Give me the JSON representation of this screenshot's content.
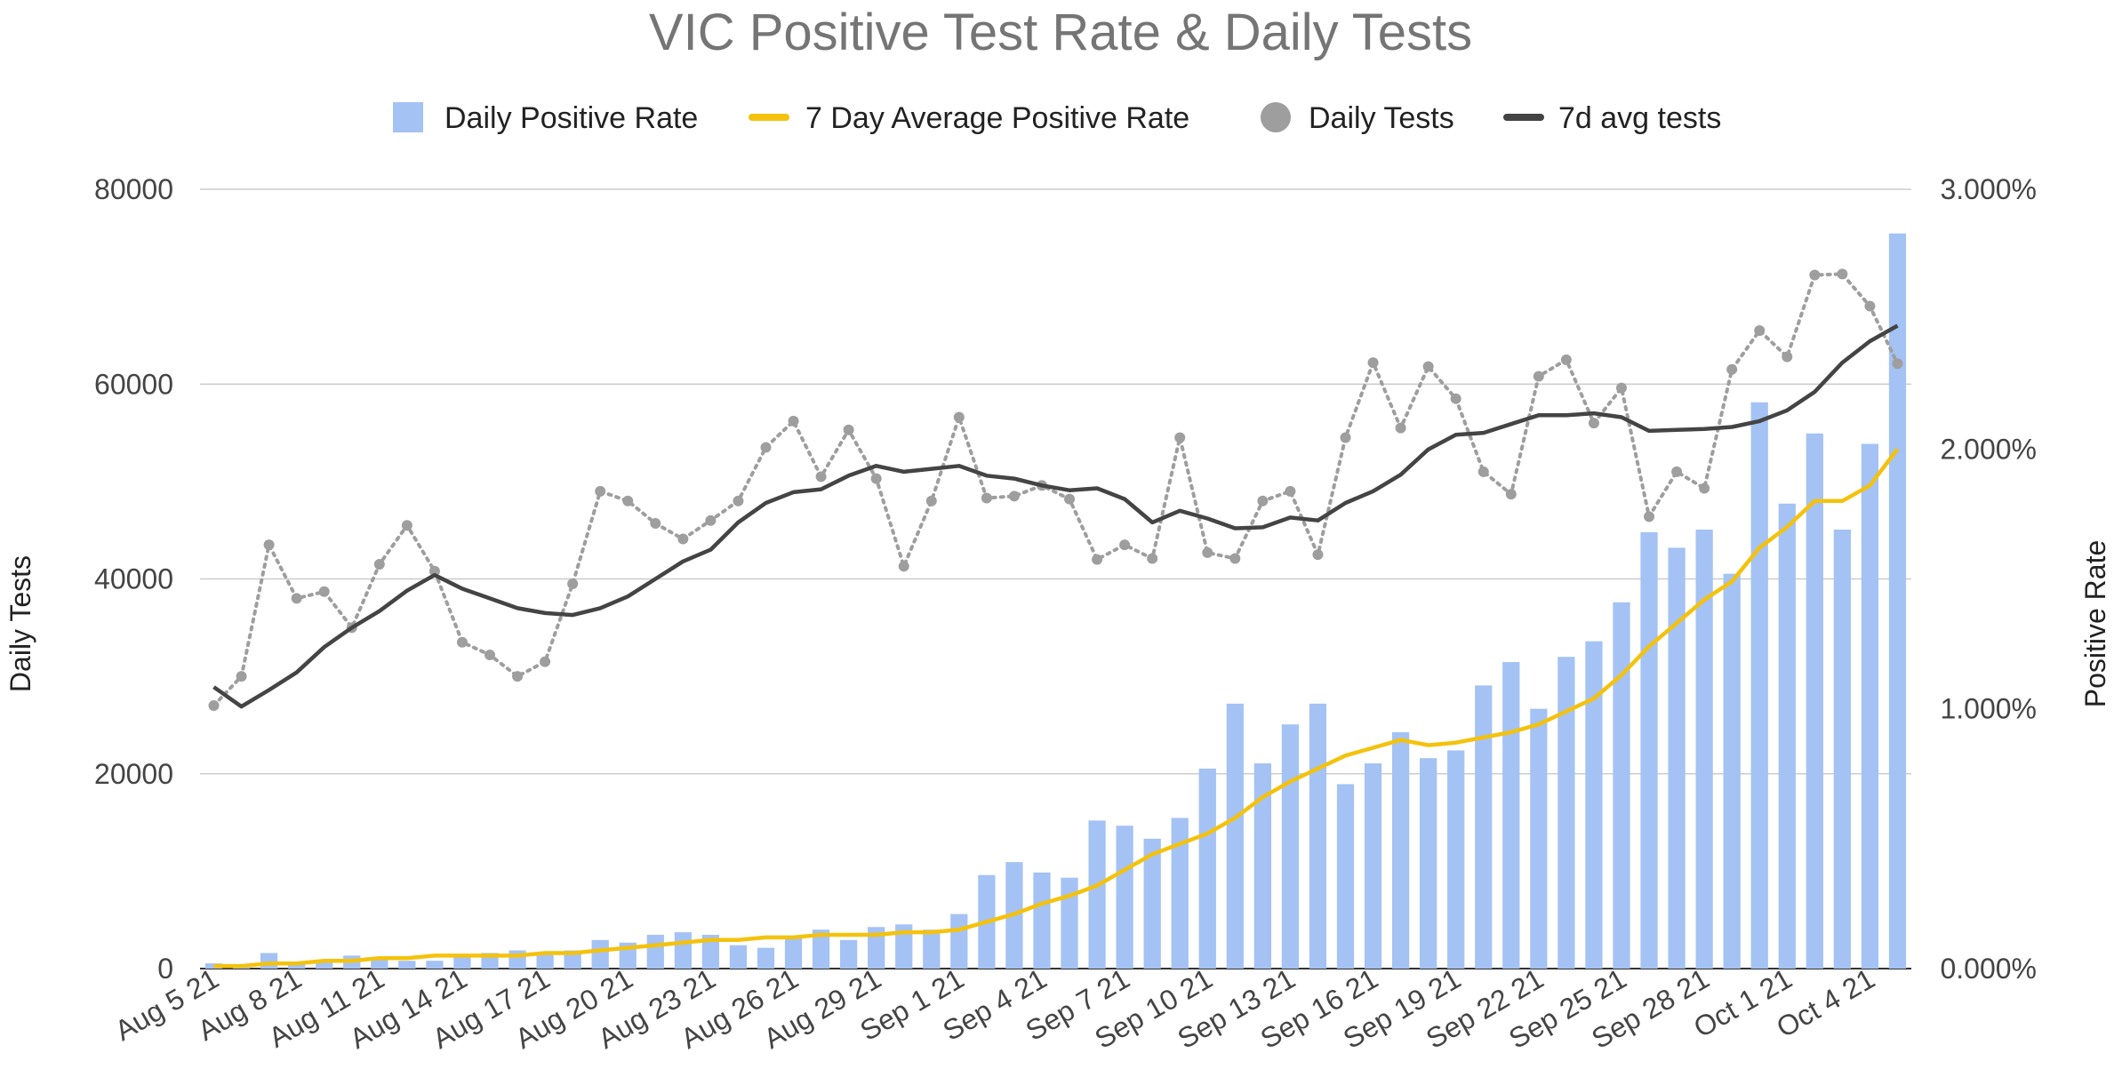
{
  "chart_data": {
    "type": "bar+line",
    "title": "VIC Positive Test Rate & Daily Tests",
    "y_left_label": "Daily Tests",
    "y_right_label": "Positive Rate",
    "y_left_range": [
      0,
      80000
    ],
    "y_right_range": [
      0,
      0.03
    ],
    "y_left_ticks": [
      "0",
      "20000",
      "40000",
      "60000",
      "80000"
    ],
    "y_right_ticks": [
      "0.000%",
      "1.000%",
      "2.000%",
      "3.000%"
    ],
    "x_tick_labels": [
      "Aug 5 21",
      "Aug 8 21",
      "Aug 11 21",
      "Aug 14 21",
      "Aug 17 21",
      "Aug 20 21",
      "Aug 23 21",
      "Aug 26 21",
      "Aug 29 21",
      "Sep 1 21",
      "Sep 4 21",
      "Sep 7 21",
      "Sep 10 21",
      "Sep 13 21",
      "Sep 16 21",
      "Sep 19 21",
      "Sep 22 21",
      "Sep 25 21",
      "Sep 28 21",
      "Oct 1 21",
      "Oct 4 21"
    ],
    "x_tick_every": 3,
    "legend": [
      {
        "label": "Daily Positive Rate",
        "color": "#a4c2f4",
        "marker": "square"
      },
      {
        "label": "7 Day Average Positive Rate",
        "color": "#f4c20d",
        "marker": "line"
      },
      {
        "label": "Daily Tests",
        "color": "#9e9e9e",
        "marker": "circle"
      },
      {
        "label": "7d avg tests",
        "color": "#444444",
        "marker": "line"
      }
    ],
    "start_date": "Aug 5 21",
    "series": [
      {
        "name": "Daily Positive Rate",
        "axis": "right",
        "type": "bar",
        "color": "#a4c2f4",
        "values": [
          0.0002,
          0.0001,
          0.0006,
          0.0002,
          0.0003,
          0.0005,
          0.0004,
          0.0003,
          0.0003,
          0.0005,
          0.0006,
          0.0007,
          0.0006,
          0.0007,
          0.0011,
          0.001,
          0.0013,
          0.0014,
          0.0013,
          0.0009,
          0.0008,
          0.0012,
          0.0015,
          0.0011,
          0.0016,
          0.0017,
          0.0015,
          0.0021,
          0.0036,
          0.0041,
          0.0037,
          0.0035,
          0.0057,
          0.0055,
          0.005,
          0.0058,
          0.0077,
          0.0102,
          0.0079,
          0.0094,
          0.0102,
          0.0071,
          0.0079,
          0.0091,
          0.0081,
          0.0084,
          0.0109,
          0.0118,
          0.01,
          0.012,
          0.0126,
          0.0141,
          0.0168,
          0.0162,
          0.0169,
          0.0152,
          0.0218,
          0.0179,
          0.0206,
          0.0169,
          0.0202,
          0.0283
        ]
      },
      {
        "name": "7 Day Average Positive Rate",
        "axis": "right",
        "type": "line",
        "color": "#f4c20d",
        "values": [
          0.0001,
          0.0001,
          0.0002,
          0.0002,
          0.0003,
          0.0003,
          0.0004,
          0.0004,
          0.0005,
          0.0005,
          0.0005,
          0.0005,
          0.0006,
          0.0006,
          0.0007,
          0.0008,
          0.0009,
          0.001,
          0.0011,
          0.0011,
          0.0012,
          0.0012,
          0.0013,
          0.0013,
          0.0013,
          0.0014,
          0.0014,
          0.0015,
          0.0018,
          0.0021,
          0.0025,
          0.0028,
          0.0032,
          0.0038,
          0.0044,
          0.0048,
          0.0052,
          0.0058,
          0.0066,
          0.0072,
          0.0077,
          0.0082,
          0.0085,
          0.0088,
          0.0086,
          0.0087,
          0.0089,
          0.0091,
          0.0094,
          0.0099,
          0.0104,
          0.0113,
          0.0124,
          0.0133,
          0.0142,
          0.0149,
          0.0162,
          0.017,
          0.018,
          0.018,
          0.0186,
          0.02
        ]
      },
      {
        "name": "Daily Tests",
        "axis": "left",
        "type": "dotted-line",
        "color": "#9e9e9e",
        "values": [
          27000,
          30000,
          43500,
          38000,
          38700,
          35000,
          41500,
          45500,
          40800,
          33500,
          32200,
          30000,
          31500,
          39500,
          49000,
          48000,
          45700,
          44100,
          46000,
          48000,
          53500,
          56200,
          50500,
          55300,
          50300,
          41300,
          48000,
          56600,
          48300,
          48500,
          49600,
          48200,
          42000,
          43500,
          42100,
          54500,
          42700,
          42100,
          48000,
          49000,
          42500,
          54500,
          62200,
          55500,
          61800,
          58500,
          51000,
          48700,
          60800,
          62500,
          56000,
          59600,
          46400,
          51000,
          49300,
          61500,
          65500,
          62800,
          71200,
          71300,
          68000,
          62100
        ]
      },
      {
        "name": "7d avg tests",
        "axis": "left",
        "type": "line",
        "color": "#444444",
        "values": [
          28900,
          26900,
          28600,
          30400,
          33000,
          35000,
          36700,
          38800,
          40400,
          39000,
          38000,
          37000,
          36500,
          36300,
          37000,
          38200,
          40000,
          41800,
          43000,
          45800,
          47800,
          48900,
          49200,
          50600,
          51600,
          51000,
          51300,
          51600,
          50600,
          50300,
          49600,
          49100,
          49300,
          48200,
          45800,
          47000,
          46200,
          45200,
          45300,
          46300,
          46000,
          47800,
          49000,
          50700,
          53300,
          54800,
          55000,
          55900,
          56800,
          56800,
          57000,
          56600,
          55200,
          55300,
          55400,
          55600,
          56200,
          57300,
          59200,
          62200,
          64400,
          66000
        ]
      }
    ]
  }
}
